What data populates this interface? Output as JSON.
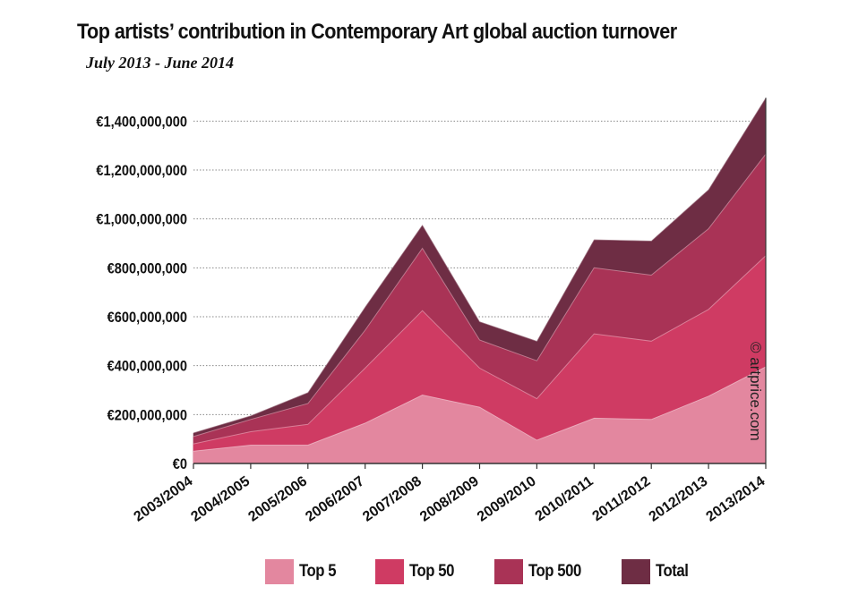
{
  "chart_data": {
    "type": "area",
    "title": "Top artists’ contribution in Contemporary Art global auction turnover",
    "subtitle": "July 2013 - June 2014",
    "categories": [
      "2003/2004",
      "2004/2005",
      "2005/2006",
      "2006/2007",
      "2007/2008",
      "2008/2009",
      "2009/2010",
      "2010/2011",
      "2011/2012",
      "2012/2013",
      "2013/2014"
    ],
    "series": [
      {
        "name": "Top 5",
        "color": "#e3879f",
        "values": [
          50000000,
          75000000,
          75000000,
          165000000,
          280000000,
          230000000,
          95000000,
          185000000,
          180000000,
          275000000,
          395000000
        ]
      },
      {
        "name": "Top 50",
        "color": "#cf3b63",
        "values": [
          80000000,
          130000000,
          160000000,
          390000000,
          625000000,
          390000000,
          265000000,
          530000000,
          500000000,
          630000000,
          850000000
        ]
      },
      {
        "name": "Top 500",
        "color": "#a93356",
        "values": [
          110000000,
          180000000,
          245000000,
          545000000,
          880000000,
          505000000,
          420000000,
          800000000,
          770000000,
          960000000,
          1265000000
        ]
      },
      {
        "name": "Total",
        "color": "#6e2d44",
        "values": [
          125000000,
          195000000,
          290000000,
          640000000,
          975000000,
          580000000,
          500000000,
          915000000,
          910000000,
          1120000000,
          1495000000
        ]
      }
    ],
    "yticks": [
      0,
      200000000,
      400000000,
      600000000,
      800000000,
      1000000000,
      1200000000,
      1400000000
    ],
    "ytick_labels": [
      "€0",
      "€200,000,000",
      "€400,000,000",
      "€600,000,000",
      "€800,000,000",
      "€1,000,000,000",
      "€1,200,000,000",
      "€1,400,000,000"
    ],
    "ylim": [
      0,
      1500000000
    ],
    "grid": true,
    "legend_position": "bottom",
    "xlabel": "",
    "ylabel": "",
    "annotation": "© artprice.com"
  }
}
